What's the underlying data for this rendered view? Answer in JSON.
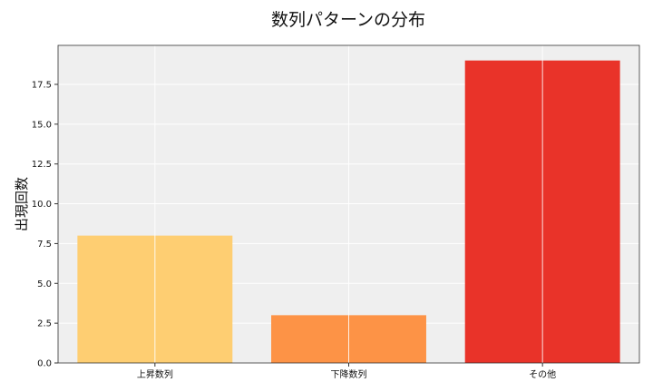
{
  "chart_data": {
    "type": "bar",
    "title": "数列パターンの分布",
    "xlabel": "",
    "ylabel": "出現回数",
    "categories": [
      "上昇数列",
      "下降数列",
      "その他"
    ],
    "values": [
      8,
      3,
      19
    ],
    "colors": [
      "#fecb6a",
      "#fd8d3c",
      "#e8281e"
    ],
    "ylim": [
      0,
      19.95
    ],
    "yticks": [
      "0.0",
      "2.5",
      "5.0",
      "7.5",
      "10.0",
      "12.5",
      "15.0",
      "17.5"
    ],
    "background": "#efefef",
    "grid": true,
    "legend": "none"
  }
}
